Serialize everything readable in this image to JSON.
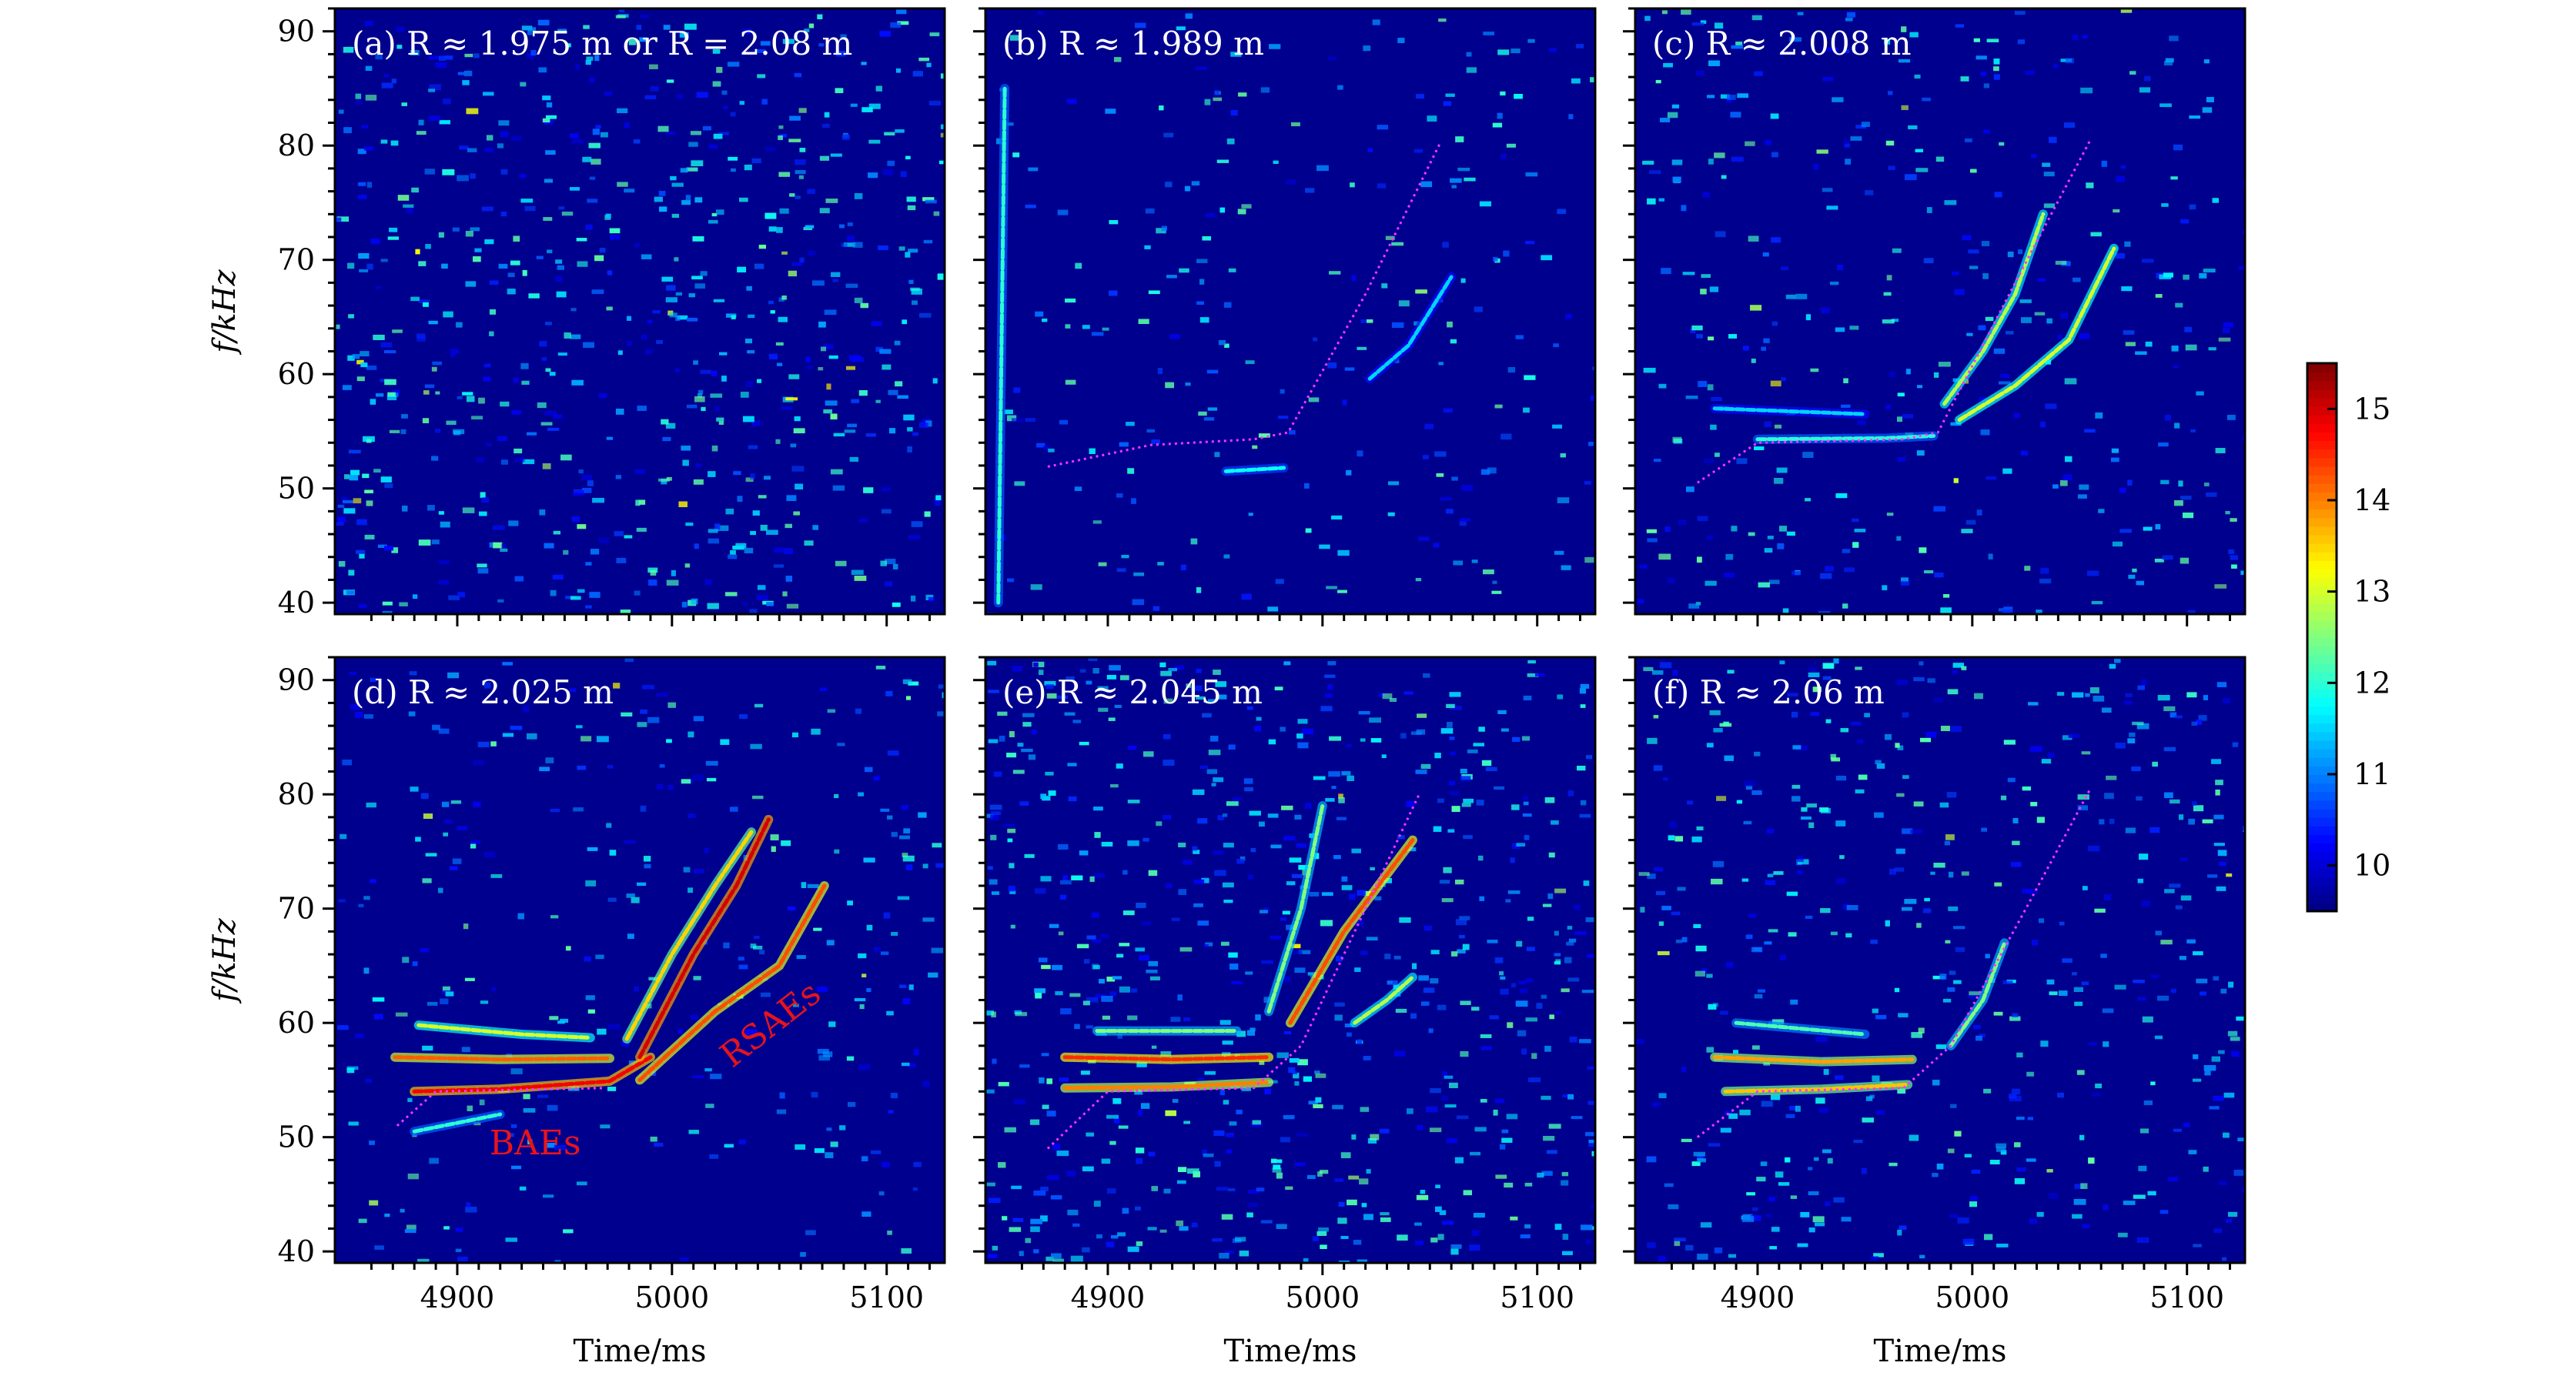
{
  "chart_data": {
    "type": "heatmap",
    "title": "",
    "xlabel": "Time/ms",
    "ylabel": "f/kHz",
    "xlim": [
      4843,
      5127
    ],
    "ylim": [
      39,
      92
    ],
    "xticks": [
      4900,
      5000,
      5100
    ],
    "yticks": [
      40,
      50,
      60,
      70,
      80,
      90
    ],
    "colorbar": {
      "range": [
        9.5,
        15.5
      ],
      "ticks": [
        10,
        11,
        12,
        13,
        14,
        15
      ],
      "colormap": "jet"
    },
    "background_color": "#00008f",
    "guide_color": "#ff33ff",
    "annotation_color": "#e8141b",
    "panels": [
      {
        "label": "(a) R ≈ 1.975 m or R = 2.08 m",
        "noise_density": 1.0,
        "guide": [],
        "traces": []
      },
      {
        "label": "(b) R ≈ 1.989 m",
        "noise_density": 0.35,
        "guide": [
          [
            4872,
            51.9
          ],
          [
            4920,
            53.8
          ],
          [
            4968,
            54.3
          ],
          [
            4984,
            54.9
          ],
          [
            5020,
            67
          ],
          [
            5055,
            80.3
          ]
        ],
        "traces": [
          {
            "points": [
              [
                4955,
                51.5
              ],
              [
                4982,
                51.8
              ]
            ],
            "value": 11.8
          },
          {
            "points": [
              [
                5022,
                59.6
              ],
              [
                5040,
                62.5
              ],
              [
                5060,
                68.5
              ]
            ],
            "value": 11.5
          },
          {
            "points": [
              [
                4849,
                40
              ],
              [
                4850,
                55
              ],
              [
                4851,
                70
              ],
              [
                4852,
                85
              ]
            ],
            "value": 12
          }
        ]
      },
      {
        "label": "(c) R ≈ 2.008 m",
        "noise_density": 0.55,
        "guide": [
          [
            4872,
            50.5
          ],
          [
            4900,
            54
          ],
          [
            4968,
            54.3
          ],
          [
            4984,
            54.9
          ],
          [
            5020,
            68
          ],
          [
            5055,
            80.5
          ]
        ],
        "traces": [
          {
            "points": [
              [
                4900,
                54.3
              ],
              [
                4960,
                54.4
              ],
              [
                4982,
                54.6
              ]
            ],
            "value": 12
          },
          {
            "points": [
              [
                4880,
                57
              ],
              [
                4950,
                56.5
              ]
            ],
            "value": 11.5
          },
          {
            "points": [
              [
                4987,
                57.4
              ],
              [
                5005,
                62
              ],
              [
                5020,
                67
              ],
              [
                5033,
                74
              ]
            ],
            "value": 12.8
          },
          {
            "points": [
              [
                4994,
                56
              ],
              [
                5020,
                59
              ],
              [
                5045,
                63
              ],
              [
                5066,
                71
              ]
            ],
            "value": 13
          }
        ]
      },
      {
        "label": "(d) R ≈ 2.025 m",
        "noise_density": 0.45,
        "guide": [
          [
            4872,
            51
          ],
          [
            4890,
            54
          ],
          [
            4968,
            54.3
          ]
        ],
        "traces": [
          {
            "points": [
              [
                4880,
                54
              ],
              [
                4920,
                54.2
              ],
              [
                4971,
                54.9
              ],
              [
                4990,
                57
              ]
            ],
            "value": 14.8
          },
          {
            "points": [
              [
                4871,
                57
              ],
              [
                4920,
                56.8
              ],
              [
                4971,
                56.9
              ]
            ],
            "value": 14.2
          },
          {
            "points": [
              [
                4882,
                59.8
              ],
              [
                4930,
                59
              ],
              [
                4962,
                58.7
              ]
            ],
            "value": 13
          },
          {
            "points": [
              [
                4880,
                50.5
              ],
              [
                4920,
                52
              ]
            ],
            "value": 12
          },
          {
            "points": [
              [
                4979,
                58.6
              ],
              [
                5000,
                66
              ],
              [
                5020,
                72
              ],
              [
                5037,
                76.7
              ]
            ],
            "value": 13.5
          },
          {
            "points": [
              [
                4985,
                57
              ],
              [
                5010,
                66
              ],
              [
                5030,
                72
              ],
              [
                5045,
                77.8
              ]
            ],
            "value": 15
          },
          {
            "points": [
              [
                4985,
                55
              ],
              [
                5020,
                61
              ],
              [
                5050,
                65
              ],
              [
                5071,
                72
              ]
            ],
            "value": 14.3
          }
        ],
        "annotations": [
          {
            "text": "BAEs",
            "t": 4915,
            "f": 48.5
          },
          {
            "text": "RSAEs",
            "t": 5028,
            "f": 56,
            "rotate": -38
          }
        ]
      },
      {
        "label": "(e) R ≈ 2.045 m",
        "noise_density": 1.0,
        "guide": [
          [
            4872,
            49
          ],
          [
            4900,
            54
          ],
          [
            4968,
            54.3
          ],
          [
            4990,
            58
          ],
          [
            5025,
            72
          ],
          [
            5045,
            80
          ]
        ],
        "traces": [
          {
            "points": [
              [
                4880,
                54.3
              ],
              [
                4930,
                54.4
              ],
              [
                4975,
                54.8
              ]
            ],
            "value": 14
          },
          {
            "points": [
              [
                4880,
                57
              ],
              [
                4930,
                56.8
              ],
              [
                4975,
                57
              ]
            ],
            "value": 14.5
          },
          {
            "points": [
              [
                4895,
                59.3
              ],
              [
                4960,
                59.3
              ]
            ],
            "value": 12.5
          },
          {
            "points": [
              [
                4985,
                60
              ],
              [
                5010,
                68
              ],
              [
                5030,
                73
              ],
              [
                5042,
                76
              ]
            ],
            "value": 14.3
          },
          {
            "points": [
              [
                4975,
                61
              ],
              [
                4990,
                70
              ],
              [
                5000,
                79
              ]
            ],
            "value": 12.5
          },
          {
            "points": [
              [
                5015,
                60
              ],
              [
                5030,
                62
              ],
              [
                5042,
                64
              ]
            ],
            "value": 12.8
          }
        ]
      },
      {
        "label": "(f) R ≈ 2.06 m",
        "noise_density": 0.7,
        "guide": [
          [
            4872,
            50
          ],
          [
            4900,
            54
          ],
          [
            4968,
            54.3
          ],
          [
            4990,
            58
          ],
          [
            5025,
            70
          ],
          [
            5055,
            80.5
          ]
        ],
        "traces": [
          {
            "points": [
              [
                4885,
                54
              ],
              [
                4930,
                54.2
              ],
              [
                4970,
                54.6
              ]
            ],
            "value": 13.6
          },
          {
            "points": [
              [
                4880,
                57
              ],
              [
                4930,
                56.6
              ],
              [
                4972,
                56.8
              ]
            ],
            "value": 13.8
          },
          {
            "points": [
              [
                4890,
                60
              ],
              [
                4950,
                59
              ]
            ],
            "value": 12.2
          },
          {
            "points": [
              [
                4990,
                58
              ],
              [
                5005,
                62
              ],
              [
                5015,
                67
              ]
            ],
            "value": 12.5
          }
        ]
      }
    ]
  }
}
